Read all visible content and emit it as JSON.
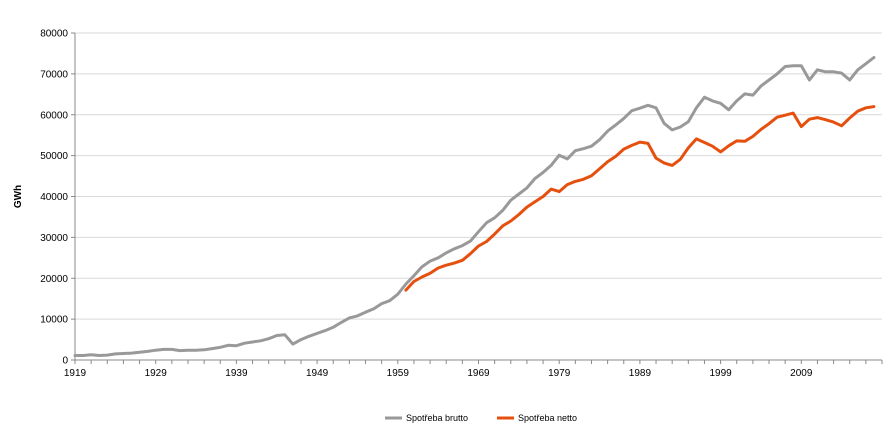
{
  "chart_data": {
    "type": "line",
    "title": "",
    "xlabel": "",
    "ylabel": "GWh",
    "xlim": [
      1919,
      2019
    ],
    "ylim": [
      0,
      80000
    ],
    "x_ticks": [
      "1919",
      "1929",
      "1939",
      "1949",
      "1959",
      "1969",
      "1979",
      "1989",
      "1999",
      "2009"
    ],
    "y_ticks": [
      "0",
      "10000",
      "20000",
      "30000",
      "40000",
      "50000",
      "60000",
      "70000",
      "80000"
    ],
    "grid": "horizontal",
    "legend": "bottom-center",
    "series": [
      {
        "name": "Spotřeba brutto",
        "color": "#999999",
        "x": [
          1919,
          1920,
          1921,
          1922,
          1923,
          1924,
          1925,
          1926,
          1927,
          1928,
          1929,
          1930,
          1931,
          1932,
          1933,
          1934,
          1935,
          1936,
          1937,
          1938,
          1939,
          1940,
          1941,
          1942,
          1943,
          1944,
          1945,
          1946,
          1947,
          1948,
          1949,
          1950,
          1951,
          1952,
          1953,
          1954,
          1955,
          1956,
          1957,
          1958,
          1959,
          1960,
          1961,
          1962,
          1963,
          1964,
          1965,
          1966,
          1967,
          1968,
          1969,
          1970,
          1971,
          1972,
          1973,
          1974,
          1975,
          1976,
          1977,
          1978,
          1979,
          1980,
          1981,
          1982,
          1983,
          1984,
          1985,
          1986,
          1987,
          1988,
          1989,
          1990,
          1991,
          1992,
          1993,
          1994,
          1995,
          1996,
          1997,
          1998,
          1999,
          2000,
          2001,
          2002,
          2003,
          2004,
          2005,
          2006,
          2007,
          2008,
          2009,
          2010,
          2011,
          2012,
          2013,
          2014,
          2015,
          2016,
          2017,
          2018
        ],
        "values": [
          1100,
          1100,
          1300,
          1100,
          1200,
          1500,
          1600,
          1700,
          1900,
          2100,
          2400,
          2600,
          2600,
          2300,
          2400,
          2400,
          2500,
          2800,
          3100,
          3600,
          3500,
          4100,
          4400,
          4700,
          5200,
          6000,
          6200,
          3900,
          5000,
          5800,
          6500,
          7200,
          8000,
          9200,
          10300,
          10800,
          11700,
          12500,
          13800,
          14500,
          16100,
          18600,
          20600,
          22800,
          24200,
          25000,
          26200,
          27200,
          28000,
          29100,
          31400,
          33600,
          34800,
          36600,
          39100,
          40600,
          42100,
          44400,
          45900,
          47600,
          50100,
          49200,
          51200,
          51700,
          52300,
          53900,
          56000,
          57500,
          59100,
          61000,
          61600,
          62300,
          61700,
          57900,
          56300,
          57000,
          58300,
          61700,
          64300,
          63400,
          62800,
          61200,
          63400,
          65100,
          64800,
          67000,
          68500,
          70000,
          71800,
          72000,
          72000,
          68500,
          71000,
          70500,
          70500,
          70200,
          68500,
          71000,
          72500,
          74000
        ]
      },
      {
        "name": "Spotřeba netto",
        "color": "#e6500f",
        "x": [
          1960,
          1961,
          1962,
          1963,
          1964,
          1965,
          1966,
          1967,
          1968,
          1969,
          1970,
          1971,
          1972,
          1973,
          1974,
          1975,
          1976,
          1977,
          1978,
          1979,
          1980,
          1981,
          1982,
          1983,
          1984,
          1985,
          1986,
          1987,
          1988,
          1989,
          1990,
          1991,
          1992,
          1993,
          1994,
          1995,
          1996,
          1997,
          1998,
          1999,
          2000,
          2001,
          2002,
          2003,
          2004,
          2005,
          2006,
          2007,
          2008,
          2009,
          2010,
          2011,
          2012,
          2013,
          2014,
          2015,
          2016,
          2017,
          2018
        ],
        "values": [
          17100,
          19200,
          20300,
          21200,
          22500,
          23200,
          23700,
          24400,
          26000,
          27900,
          29000,
          30800,
          32800,
          34000,
          35600,
          37400,
          38700,
          40000,
          41800,
          41200,
          42900,
          43700,
          44200,
          45100,
          46800,
          48500,
          49800,
          51600,
          52500,
          53300,
          53000,
          49400,
          48200,
          47600,
          49100,
          51900,
          54100,
          53200,
          52300,
          50900,
          52400,
          53600,
          53500,
          54700,
          56400,
          57800,
          59400,
          59900,
          60400,
          57100,
          58900,
          59300,
          58800,
          58200,
          57300,
          59200,
          60900,
          61700,
          62000
        ]
      }
    ]
  }
}
